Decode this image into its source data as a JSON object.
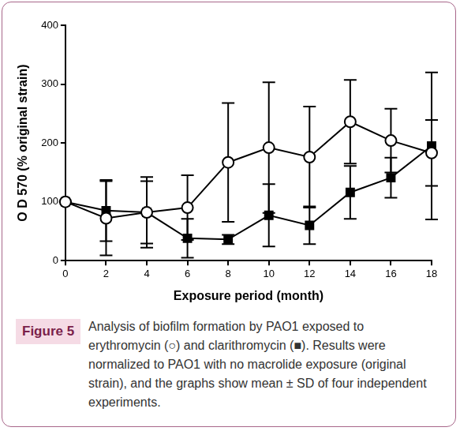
{
  "chart_data": {
    "type": "line",
    "x_label": "Exposure period (month)",
    "y_label": "O D 570 (% original strain)",
    "x": [
      0,
      2,
      4,
      6,
      8,
      10,
      12,
      14,
      16,
      18
    ],
    "xlim": [
      0,
      18
    ],
    "xticks": [
      0,
      2,
      4,
      6,
      8,
      10,
      12,
      14,
      16,
      18
    ],
    "ylim": [
      0,
      400
    ],
    "yticks": [
      0,
      100,
      200,
      300,
      400
    ],
    "grid": false,
    "series": [
      {
        "name": "erythromycin",
        "color": "#000000",
        "marker": "circle-open",
        "line_style": "solid",
        "values": [
          100,
          72,
          82,
          90,
          167,
          192,
          176,
          236,
          204,
          183
        ],
        "errors": [
          0,
          63,
          60,
          55,
          101,
          111,
          86,
          71,
          54,
          56
        ]
      },
      {
        "name": "clarithromycin",
        "color": "#000000",
        "marker": "square",
        "line_style": "solid",
        "values": [
          100,
          85,
          82,
          38,
          36,
          77,
          60,
          116,
          141,
          195
        ],
        "errors": [
          0,
          52,
          53,
          33,
          8,
          53,
          32,
          45,
          34,
          125
        ]
      }
    ]
  },
  "caption": {
    "label": "Figure 5",
    "text": "Analysis of biofilm formation by PAO1 exposed to erythromycin (○) and clarithromycin (■). Results were normalized to PAO1 with no macrolide exposure (original strain), and the graphs show mean ± SD of four independent experiments."
  }
}
